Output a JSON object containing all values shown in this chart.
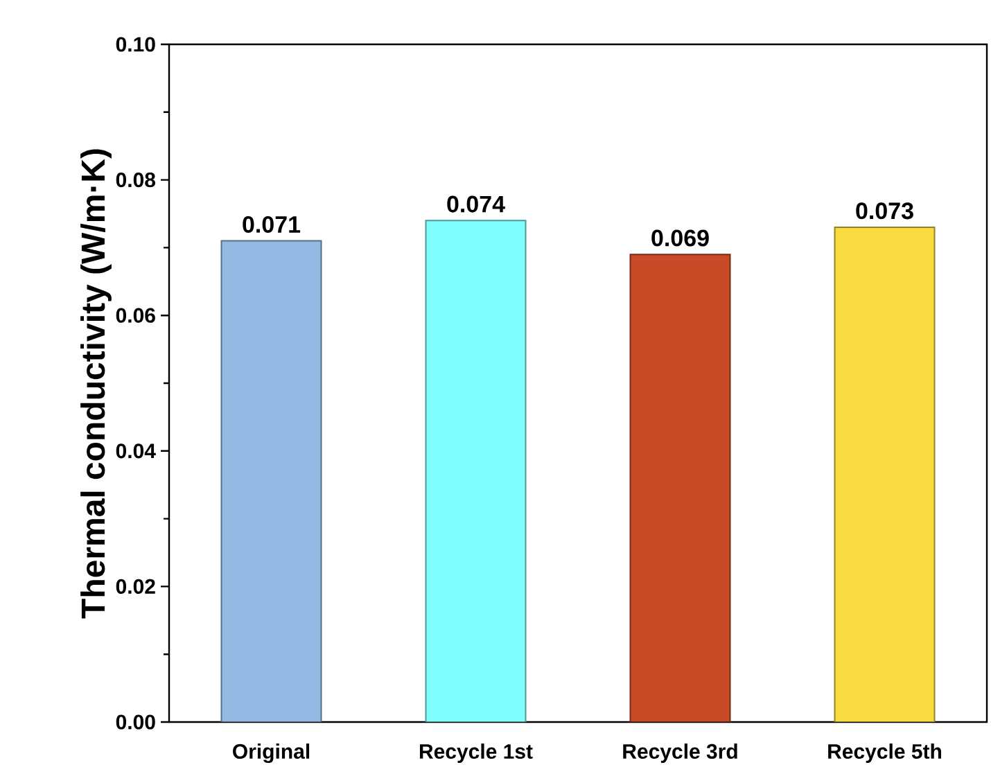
{
  "chart_data": {
    "type": "bar",
    "ylabel": "Thermal conductivity (W/m·K)",
    "categories": [
      "Original",
      "Recycle 1st",
      "Recycle 3rd",
      "Recycle 5th"
    ],
    "values": [
      0.071,
      0.074,
      0.069,
      0.073
    ],
    "colors": [
      "#94b9e3",
      "#80ffff",
      "#c94a26",
      "#f8db40"
    ],
    "ylim": [
      0,
      0.1
    ],
    "yticks": [
      {
        "value": 0,
        "label": "0.00"
      },
      {
        "value": 0.02,
        "label": "0.02"
      },
      {
        "value": 0.04,
        "label": "0.04"
      },
      {
        "value": 0.06,
        "label": "0.06"
      },
      {
        "value": 0.08,
        "label": "0.08"
      },
      {
        "value": 0.1,
        "label": "0.10"
      }
    ],
    "data_labels": true
  }
}
